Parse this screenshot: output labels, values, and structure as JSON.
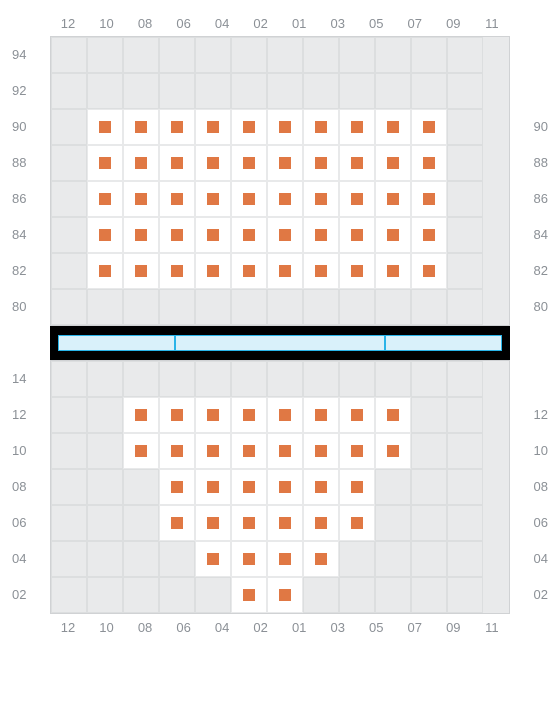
{
  "chart": {
    "type": "seatmap",
    "background_color": "#ffffff",
    "grid_background": "#e9eaeb",
    "grid_border": "#d0d2d4",
    "cell_border": "#dcdedf",
    "seat_background": "#ffffff",
    "marker_color": "#e07844",
    "label_color": "#8b9096",
    "label_fontsize": 13,
    "cell_size": 36,
    "cols": 12,
    "separator": {
      "bar_background": "#000000",
      "segment_fill": "#d9f1fa",
      "segment_border": "#29b4e8",
      "segments": 3
    },
    "top": {
      "x_axis_top": [
        "12",
        "10",
        "08",
        "06",
        "04",
        "02",
        "01",
        "03",
        "05",
        "07",
        "09",
        "11"
      ],
      "rows": [
        "94",
        "92",
        "90",
        "88",
        "86",
        "84",
        "82",
        "80"
      ],
      "right_labels": [
        "90",
        "88",
        "86",
        "84",
        "82",
        "80"
      ],
      "right_label_start_index": 2,
      "seats": {
        "90": [
          1,
          2,
          3,
          4,
          5,
          6,
          7,
          8,
          9,
          10
        ],
        "88": [
          1,
          2,
          3,
          4,
          5,
          6,
          7,
          8,
          9,
          10
        ],
        "86": [
          1,
          2,
          3,
          4,
          5,
          6,
          7,
          8,
          9,
          10
        ],
        "84": [
          1,
          2,
          3,
          4,
          5,
          6,
          7,
          8,
          9,
          10
        ],
        "82": [
          1,
          2,
          3,
          4,
          5,
          6,
          7,
          8,
          9,
          10
        ]
      }
    },
    "bottom": {
      "rows": [
        "14",
        "12",
        "10",
        "08",
        "06",
        "04",
        "02"
      ],
      "right_labels": [
        "12",
        "10",
        "08",
        "06",
        "04",
        "02"
      ],
      "right_label_start_index": 1,
      "x_axis_bottom": [
        "12",
        "10",
        "08",
        "06",
        "04",
        "02",
        "01",
        "03",
        "05",
        "07",
        "09",
        "11"
      ],
      "seats": {
        "12": [
          2,
          3,
          4,
          5,
          6,
          7,
          8,
          9
        ],
        "10": [
          2,
          3,
          4,
          5,
          6,
          7,
          8,
          9
        ],
        "08": [
          3,
          4,
          5,
          6,
          7,
          8
        ],
        "06": [
          3,
          4,
          5,
          6,
          7,
          8
        ],
        "04": [
          4,
          5,
          6,
          7
        ],
        "02": [
          5,
          6
        ]
      }
    }
  }
}
